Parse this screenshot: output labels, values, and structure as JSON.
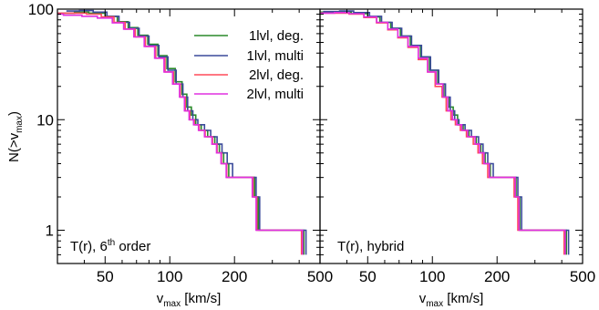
{
  "chart_data": [
    {
      "type": "line",
      "panel_label": "T(r), 6",
      "panel_label_sup": "th",
      "panel_label_tail": " order",
      "xlabel": "v",
      "xlabel_sub": "max",
      "xlabel_tail": " [km/s]",
      "ylabel_head": "N(>v",
      "ylabel_sub": "max",
      "ylabel_tail": ")",
      "xscale": "log",
      "yscale": "log",
      "xlim": [
        30,
        500
      ],
      "ylim": [
        0.5,
        100
      ],
      "xticks": [
        50,
        100,
        200,
        500
      ],
      "xtick_labels": [
        "50",
        "100",
        "200",
        "500"
      ],
      "yticks": [
        1,
        10,
        100
      ],
      "ytick_labels": [
        "1",
        "10",
        "100"
      ],
      "legend_position": "top-right",
      "series": [
        {
          "name": "1lvl, deg.",
          "color": "#2a8a2a",
          "points": [
            [
              30,
              92
            ],
            [
              36,
              94
            ],
            [
              42,
              92
            ],
            [
              50,
              86
            ],
            [
              57,
              77
            ],
            [
              64,
              68
            ],
            [
              71,
              58
            ],
            [
              79,
              48
            ],
            [
              88,
              38
            ],
            [
              97,
              29
            ],
            [
              106,
              22
            ],
            [
              114,
              17
            ],
            [
              120,
              13
            ],
            [
              126,
              11
            ],
            [
              132,
              9
            ],
            [
              140,
              8
            ],
            [
              150,
              7
            ],
            [
              162,
              6
            ],
            [
              170,
              5
            ],
            [
              178,
              4
            ],
            [
              188,
              3
            ],
            [
              248,
              2
            ],
            [
              258,
              1
            ],
            [
              420,
              0.6
            ]
          ]
        },
        {
          "name": "1lvl, multi",
          "color": "#3a4a9a",
          "points": [
            [
              33,
              96
            ],
            [
              38,
              97
            ],
            [
              44,
              94
            ],
            [
              51,
              86
            ],
            [
              58,
              76
            ],
            [
              65,
              67
            ],
            [
              72,
              57
            ],
            [
              80,
              47
            ],
            [
              89,
              37
            ],
            [
              98,
              28
            ],
            [
              107,
              21
            ],
            [
              115,
              16
            ],
            [
              121,
              12
            ],
            [
              128,
              10
            ],
            [
              135,
              9
            ],
            [
              145,
              8
            ],
            [
              155,
              7
            ],
            [
              166,
              6
            ],
            [
              175,
              5
            ],
            [
              185,
              4
            ],
            [
              196,
              3
            ],
            [
              252,
              2
            ],
            [
              262,
              1
            ],
            [
              430,
              0.6
            ]
          ]
        },
        {
          "name": "2lvl, deg.",
          "color": "#ff4a5a",
          "points": [
            [
              30,
              92
            ],
            [
              35,
              92
            ],
            [
              41,
              90
            ],
            [
              48,
              85
            ],
            [
              55,
              76
            ],
            [
              62,
              66
            ],
            [
              69,
              56
            ],
            [
              77,
              46
            ],
            [
              86,
              36
            ],
            [
              95,
              27
            ],
            [
              104,
              21
            ],
            [
              112,
              16
            ],
            [
              118,
              12
            ],
            [
              124,
              10
            ],
            [
              130,
              9
            ],
            [
              137,
              8
            ],
            [
              146,
              7
            ],
            [
              158,
              6
            ],
            [
              166,
              5
            ],
            [
              174,
              4
            ],
            [
              184,
              3
            ],
            [
              244,
              2
            ],
            [
              254,
              1
            ],
            [
              410,
              0.6
            ]
          ]
        },
        {
          "name": "2lvl, multi",
          "color": "#e030e0",
          "points": [
            [
              26,
              90
            ],
            [
              32,
              88
            ],
            [
              39,
              86
            ],
            [
              46,
              83
            ],
            [
              54,
              75
            ],
            [
              61,
              66
            ],
            [
              68,
              56
            ],
            [
              76,
              46
            ],
            [
              85,
              36
            ],
            [
              94,
              27
            ],
            [
              103,
              21
            ],
            [
              111,
              16
            ],
            [
              117,
              12
            ],
            [
              123,
              10
            ],
            [
              129,
              9
            ],
            [
              136,
              8
            ],
            [
              145,
              7
            ],
            [
              157,
              6
            ],
            [
              165,
              5
            ],
            [
              173,
              4
            ],
            [
              183,
              3
            ],
            [
              242,
              2
            ],
            [
              252,
              1
            ],
            [
              415,
              0.6
            ]
          ]
        }
      ]
    },
    {
      "type": "line",
      "panel_label": "T(r), hybrid",
      "xlabel": "v",
      "xlabel_sub": "max",
      "xlabel_tail": " [km/s]",
      "xscale": "log",
      "yscale": "log",
      "xlim": [
        30,
        500
      ],
      "ylim": [
        0.5,
        100
      ],
      "xticks": [
        50,
        100,
        200,
        500
      ],
      "xtick_labels": [
        "50",
        "100",
        "200",
        "500"
      ],
      "series": [
        {
          "name": "1lvl, deg.",
          "color": "#2a8a2a",
          "points": [
            [
              30,
              94
            ],
            [
              36,
              94
            ],
            [
              42,
              91
            ],
            [
              50,
              85
            ],
            [
              57,
              76
            ],
            [
              64,
              67
            ],
            [
              71,
              57
            ],
            [
              79,
              47
            ],
            [
              88,
              37
            ],
            [
              97,
              28
            ],
            [
              106,
              21
            ],
            [
              113,
              16
            ],
            [
              119,
              13
            ],
            [
              125,
              11
            ],
            [
              131,
              9
            ],
            [
              139,
              8
            ],
            [
              148,
              7
            ],
            [
              160,
              6
            ],
            [
              168,
              5
            ],
            [
              176,
              4
            ],
            [
              186,
              3
            ],
            [
              245,
              2
            ],
            [
              255,
              1
            ],
            [
              420,
              0.6
            ]
          ]
        },
        {
          "name": "1lvl, multi",
          "color": "#3a4a9a",
          "points": [
            [
              31,
              95
            ],
            [
              37,
              96
            ],
            [
              43,
              93
            ],
            [
              51,
              86
            ],
            [
              58,
              76
            ],
            [
              65,
              67
            ],
            [
              72,
              57
            ],
            [
              80,
              47
            ],
            [
              89,
              37
            ],
            [
              98,
              28
            ],
            [
              107,
              21
            ],
            [
              115,
              16
            ],
            [
              121,
              12
            ],
            [
              127,
              10
            ],
            [
              133,
              9
            ],
            [
              142,
              8
            ],
            [
              152,
              7
            ],
            [
              164,
              6
            ],
            [
              172,
              5
            ],
            [
              181,
              4
            ],
            [
              192,
              3
            ],
            [
              250,
              2
            ],
            [
              260,
              1
            ],
            [
              430,
              0.6
            ]
          ]
        },
        {
          "name": "2lvl, deg.",
          "color": "#ff4a5a",
          "points": [
            [
              30,
              92
            ],
            [
              35,
              92
            ],
            [
              41,
              90
            ],
            [
              48,
              84
            ],
            [
              55,
              75
            ],
            [
              62,
              65
            ],
            [
              69,
              55
            ],
            [
              77,
              45
            ],
            [
              86,
              35
            ],
            [
              95,
              27
            ],
            [
              103,
              20
            ],
            [
              111,
              16
            ],
            [
              116,
              12
            ],
            [
              122,
              10
            ],
            [
              128,
              9
            ],
            [
              135,
              8
            ],
            [
              144,
              7
            ],
            [
              155,
              6
            ],
            [
              163,
              5
            ],
            [
              171,
              4
            ],
            [
              181,
              3
            ],
            [
              240,
              2
            ],
            [
              250,
              1
            ],
            [
              410,
              0.6
            ]
          ]
        },
        {
          "name": "2lvl, multi",
          "color": "#e030e0",
          "points": [
            [
              30,
              92
            ],
            [
              35,
              93
            ],
            [
              41,
              91
            ],
            [
              48,
              85
            ],
            [
              55,
              76
            ],
            [
              62,
              66
            ],
            [
              69,
              56
            ],
            [
              77,
              46
            ],
            [
              86,
              36
            ],
            [
              95,
              27
            ],
            [
              104,
              21
            ],
            [
              112,
              16
            ],
            [
              118,
              12
            ],
            [
              124,
              10
            ],
            [
              130,
              9
            ],
            [
              137,
              8
            ],
            [
              146,
              7
            ],
            [
              158,
              6
            ],
            [
              166,
              5
            ],
            [
              174,
              4
            ],
            [
              184,
              3
            ],
            [
              243,
              2
            ],
            [
              253,
              1
            ],
            [
              415,
              0.6
            ]
          ]
        }
      ]
    }
  ]
}
